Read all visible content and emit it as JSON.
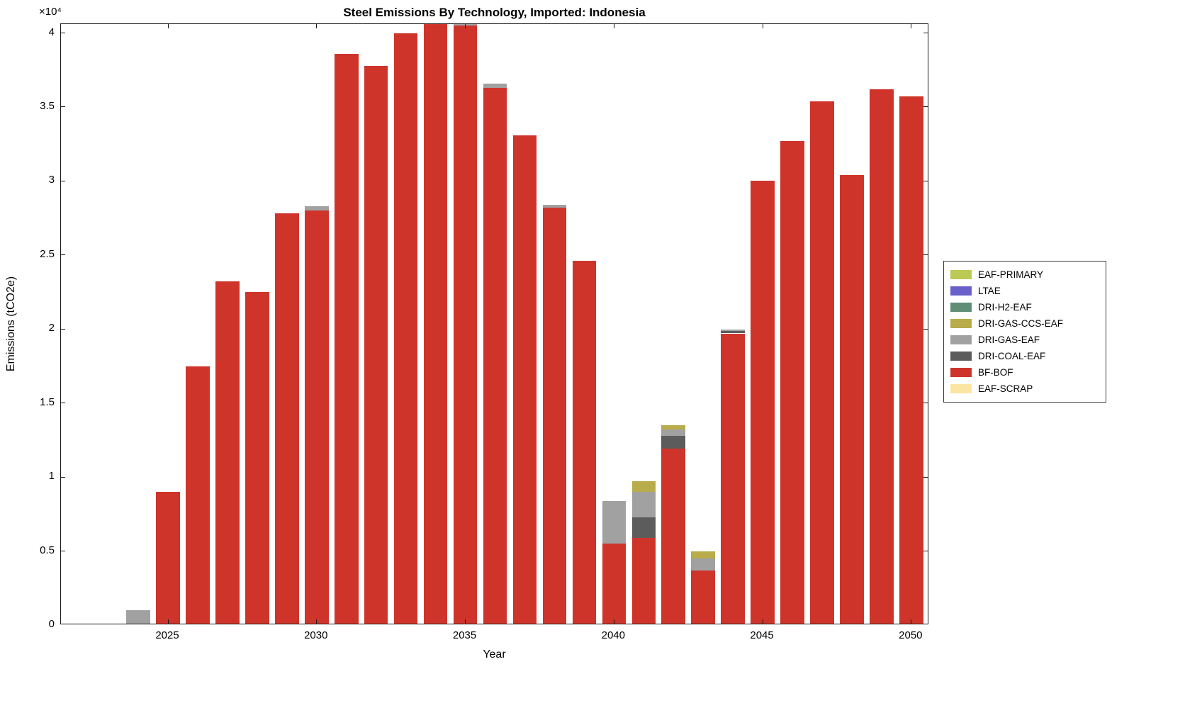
{
  "figure": {
    "title": "Steel Emissions By Technology, Imported: Indonesia",
    "xlabel": "Year",
    "ylabel": "Emissions (tCO2e)",
    "y_exponent_label": "×10⁴"
  },
  "chart_data": {
    "type": "bar",
    "stacked": true,
    "title": "Steel Emissions By Technology, Imported: Indonesia",
    "xlabel": "Year",
    "ylabel": "Emissions (tCO2e)",
    "y_axis_multiplier": 10000,
    "grid": false,
    "legend_position": "right-outside",
    "xlim": [
      2021.4,
      2050.6
    ],
    "ylim": [
      0,
      40600
    ],
    "bar_width_years": 0.8,
    "xticks": [
      2025,
      2030,
      2035,
      2040,
      2045,
      2050
    ],
    "yticks": [
      {
        "value": 0,
        "label": "0"
      },
      {
        "value": 5000,
        "label": "0.5"
      },
      {
        "value": 10000,
        "label": "1"
      },
      {
        "value": 15000,
        "label": "1.5"
      },
      {
        "value": 20000,
        "label": "2"
      },
      {
        "value": 25000,
        "label": "2.5"
      },
      {
        "value": 30000,
        "label": "3"
      },
      {
        "value": 35000,
        "label": "3.5"
      },
      {
        "value": 40000,
        "label": "4"
      }
    ],
    "years": [
      2023,
      2024,
      2025,
      2026,
      2027,
      2028,
      2029,
      2030,
      2031,
      2032,
      2033,
      2034,
      2035,
      2036,
      2037,
      2038,
      2039,
      2040,
      2041,
      2042,
      2043,
      2044,
      2045,
      2046,
      2047,
      2048,
      2049,
      2050
    ],
    "series": [
      {
        "name": "EAF-SCRAP",
        "color": "#FBE5A3",
        "values": [
          0,
          0,
          0,
          0,
          0,
          0,
          0,
          0,
          0,
          0,
          0,
          0,
          0,
          0,
          0,
          0,
          0,
          0,
          0,
          0,
          0,
          0,
          0,
          0,
          0,
          0,
          0,
          0
        ]
      },
      {
        "name": "BF-BOF",
        "color": "#CF342B",
        "values": [
          0,
          0,
          9000,
          17500,
          23200,
          22500,
          27800,
          28000,
          38600,
          37800,
          40000,
          41900,
          40500,
          36300,
          33100,
          28200,
          24600,
          5500,
          5900,
          11900,
          3700,
          19700,
          30000,
          32700,
          35400,
          30400,
          36200,
          35700
        ]
      },
      {
        "name": "DRI-COAL-EAF",
        "color": "#5C5C5C",
        "values": [
          0,
          0,
          0,
          0,
          0,
          0,
          0,
          0,
          0,
          0,
          0,
          0,
          0,
          0,
          0,
          0,
          0,
          0,
          1400,
          900,
          0,
          150,
          0,
          0,
          0,
          0,
          0,
          0
        ]
      },
      {
        "name": "DRI-GAS-EAF",
        "color": "#A1A1A1",
        "values": [
          120,
          1000,
          0,
          0,
          0,
          0,
          0,
          300,
          0,
          0,
          0,
          0,
          300,
          300,
          0,
          200,
          0,
          2900,
          1700,
          400,
          800,
          100,
          0,
          0,
          0,
          0,
          0,
          0
        ]
      },
      {
        "name": "DRI-GAS-CCS-EAF",
        "color": "#B9AC4B",
        "values": [
          0,
          0,
          0,
          0,
          0,
          0,
          0,
          0,
          0,
          0,
          0,
          0,
          0,
          0,
          0,
          0,
          0,
          0,
          700,
          300,
          500,
          0,
          0,
          0,
          0,
          0,
          0,
          0
        ]
      },
      {
        "name": "DRI-H2-EAF",
        "color": "#5F8D76",
        "values": [
          0,
          0,
          0,
          0,
          0,
          0,
          0,
          0,
          0,
          0,
          0,
          0,
          0,
          0,
          0,
          0,
          0,
          0,
          0,
          0,
          0,
          0,
          0,
          0,
          0,
          0,
          0,
          0
        ]
      },
      {
        "name": "LTAE",
        "color": "#6961C9",
        "values": [
          0,
          0,
          0,
          0,
          0,
          0,
          0,
          0,
          0,
          0,
          0,
          0,
          0,
          0,
          0,
          0,
          0,
          0,
          0,
          0,
          0,
          0,
          0,
          0,
          0,
          0,
          0,
          0
        ]
      },
      {
        "name": "EAF-PRIMARY",
        "color": "#BCC954",
        "values": [
          0,
          0,
          0,
          0,
          0,
          0,
          0,
          0,
          0,
          0,
          0,
          0,
          0,
          0,
          0,
          0,
          0,
          0,
          0,
          0,
          0,
          0,
          0,
          0,
          0,
          0,
          0,
          0
        ]
      }
    ],
    "legend": [
      "EAF-PRIMARY",
      "LTAE",
      "DRI-H2-EAF",
      "DRI-GAS-CCS-EAF",
      "DRI-GAS-EAF",
      "DRI-COAL-EAF",
      "BF-BOF",
      "EAF-SCRAP"
    ]
  }
}
